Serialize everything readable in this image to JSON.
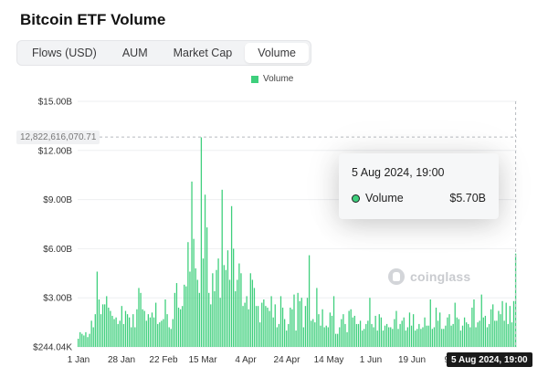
{
  "title": "Bitcoin ETF Volume",
  "tabs": [
    {
      "label": "Flows (USD)",
      "active": false
    },
    {
      "label": "AUM",
      "active": false
    },
    {
      "label": "Market Cap",
      "active": false
    },
    {
      "label": "Volume",
      "active": true
    }
  ],
  "watermark": "coinglass",
  "tooltip": {
    "date": "5 Aug 2024, 19:00",
    "series_label": "Volume",
    "value": "$5.70B"
  },
  "crosshair": {
    "y_label": "12,822,616,070.71",
    "x_label": "5 Aug 2024, 19:00"
  },
  "colors": {
    "bar": "#3ecf7c",
    "accent": "#3ecf7c"
  },
  "chart_data": {
    "type": "bar",
    "legend": [
      "Volume"
    ],
    "legend_position": "top-center",
    "grid": true,
    "ylim": [
      0.000244,
      15.0
    ],
    "y_ticks": [
      {
        "value": 15.0,
        "label": "$15.00B"
      },
      {
        "value": 12.0,
        "label": "$12.00B"
      },
      {
        "value": 9.0,
        "label": "$9.00B"
      },
      {
        "value": 6.0,
        "label": "$6.00B"
      },
      {
        "value": 3.0,
        "label": "$3.00B"
      },
      {
        "value": 0.000244,
        "label": "$244.04K"
      }
    ],
    "x_ticks": [
      "1 Jan",
      "28 Jan",
      "22 Feb",
      "15 Mar",
      "4 Apr",
      "24 Apr",
      "14 May",
      "1 Jun",
      "19 Jun",
      "9 Jul"
    ],
    "series": [
      {
        "name": "Volume",
        "unit": "USD billions",
        "values": [
          0.5,
          0.9,
          0.8,
          0.7,
          0.9,
          0.6,
          0.8,
          1.6,
          1.2,
          2.0,
          4.6,
          2.9,
          2.0,
          2.6,
          2.6,
          3.1,
          2.4,
          2.2,
          1.9,
          1.7,
          1.8,
          1.4,
          1.6,
          2.5,
          1.4,
          2.2,
          2.0,
          1.8,
          1.2,
          2.0,
          1.2,
          2.3,
          3.6,
          3.3,
          2.3,
          2.2,
          1.6,
          2.0,
          1.8,
          2.1,
          1.8,
          2.7,
          1.4,
          1.5,
          1.6,
          1.7,
          2.9,
          2.0,
          1.2,
          1.1,
          1.7,
          3.3,
          3.9,
          2.4,
          2.3,
          2.5,
          3.8,
          3.7,
          6.4,
          4.6,
          10.1,
          6.6,
          4.8,
          4.1,
          3.3,
          12.8,
          5.4,
          9.3,
          7.3,
          3.3,
          2.6,
          4.5,
          3.4,
          4.7,
          5.4,
          3.0,
          9.6,
          5.0,
          4.7,
          5.9,
          4.1,
          8.6,
          6.0,
          3.4,
          4.1,
          5.1,
          4.5,
          2.5,
          2.7,
          3.1,
          2.3,
          4.5,
          4.1,
          3.6,
          2.5,
          2.5,
          1.5,
          2.7,
          2.9,
          2.5,
          2.4,
          2.2,
          3.1,
          1.8,
          2.6,
          1.2,
          1.4,
          3.1,
          2.4,
          1.7,
          1.0,
          1.4,
          2.4,
          2.3,
          3.2,
          1.0,
          3.3,
          2.8,
          3.0,
          1.2,
          2.5,
          3.0,
          5.6,
          1.6,
          1.7,
          1.5,
          3.6,
          2.0,
          1.3,
          2.3,
          1.2,
          1.3,
          1.2,
          2.1,
          1.9,
          3.1,
          0.8,
          0.8,
          1.2,
          1.7,
          2.0,
          1.4,
          0.9,
          2.2,
          2.3,
          1.8,
          1.9,
          1.4,
          1.4,
          1.6,
          1.0,
          1.1,
          1.4,
          1.6,
          3.0,
          1.4,
          1.2,
          1.9,
          1.0,
          2.0,
          1.8,
          1.0,
          1.3,
          1.4,
          1.2,
          1.2,
          1.1,
          1.7,
          2.2,
          1.1,
          1.4,
          1.6,
          1.8,
          1.0,
          1.2,
          2.1,
          1.3,
          2.0,
          1.0,
          1.1,
          1.4,
          1.1,
          1.2,
          1.8,
          1.3,
          1.3,
          2.9,
          1.1,
          1.2,
          2.4,
          1.6,
          2.1,
          1.1,
          1.1,
          1.3,
          1.8,
          2.0,
          1.3,
          1.4,
          2.7,
          1.8,
          1.7,
          1.0,
          1.3,
          1.8,
          1.5,
          1.4,
          1.2,
          2.4,
          2.9,
          1.2,
          1.5,
          1.6,
          3.2,
          1.8,
          1.9,
          1.2,
          1.4,
          2.3,
          2.6,
          1.6,
          1.6,
          2.2,
          2.0,
          2.8,
          1.6,
          2.7,
          1.4,
          2.5,
          1.5,
          2.8,
          5.7
        ]
      }
    ]
  }
}
